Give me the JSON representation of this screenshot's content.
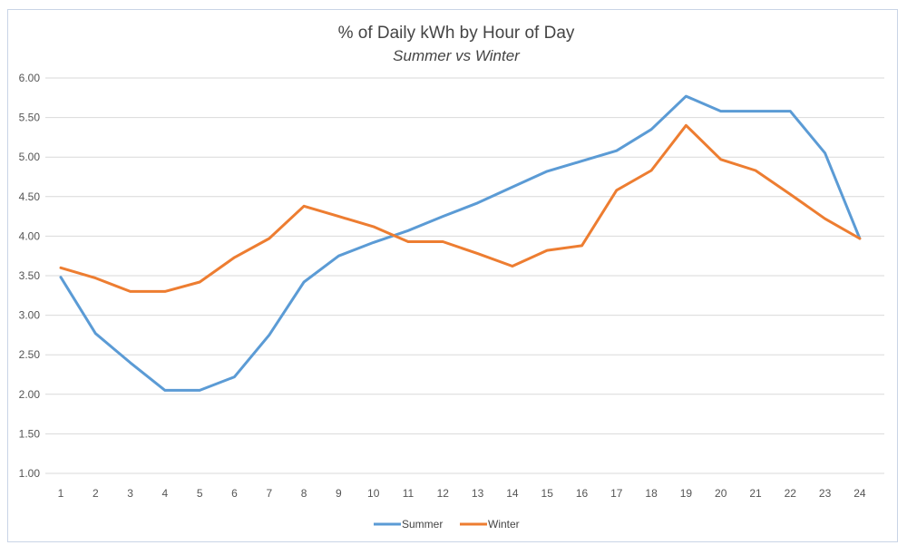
{
  "chart_data": {
    "type": "line",
    "title": "% of Daily kWh by Hour of Day",
    "subtitle": "Summer vs Winter",
    "xlabel": "",
    "ylabel": "",
    "x": [
      1,
      2,
      3,
      4,
      5,
      6,
      7,
      8,
      9,
      10,
      11,
      12,
      13,
      14,
      15,
      16,
      17,
      18,
      19,
      20,
      21,
      22,
      23,
      24
    ],
    "x_tick_labels": [
      "1",
      "2",
      "3",
      "4",
      "5",
      "6",
      "7",
      "8",
      "9",
      "10",
      "11",
      "12",
      "13",
      "14",
      "15",
      "16",
      "17",
      "18",
      "19",
      "20",
      "21",
      "22",
      "23",
      "24"
    ],
    "ylim": [
      1.0,
      6.0
    ],
    "y_tick_labels": [
      "1.00",
      "1.50",
      "2.00",
      "2.50",
      "3.00",
      "3.50",
      "4.00",
      "4.50",
      "5.00",
      "5.50",
      "6.00"
    ],
    "grid": true,
    "legend_position": "bottom",
    "series": [
      {
        "name": "Summer",
        "color": "#5b9bd5",
        "values": [
          3.48,
          2.77,
          2.4,
          2.05,
          2.05,
          2.22,
          2.75,
          3.42,
          3.75,
          3.92,
          4.07,
          4.25,
          4.42,
          4.62,
          4.82,
          4.95,
          5.08,
          5.35,
          5.77,
          5.58,
          5.58,
          5.58,
          5.05,
          3.97
        ]
      },
      {
        "name": "Winter",
        "color": "#ed7d31",
        "values": [
          3.6,
          3.47,
          3.3,
          3.3,
          3.42,
          3.73,
          3.97,
          4.38,
          4.25,
          4.12,
          3.93,
          3.93,
          3.78,
          3.62,
          3.82,
          3.88,
          4.58,
          4.83,
          5.4,
          4.97,
          4.83,
          4.53,
          4.22,
          3.97
        ]
      }
    ]
  }
}
